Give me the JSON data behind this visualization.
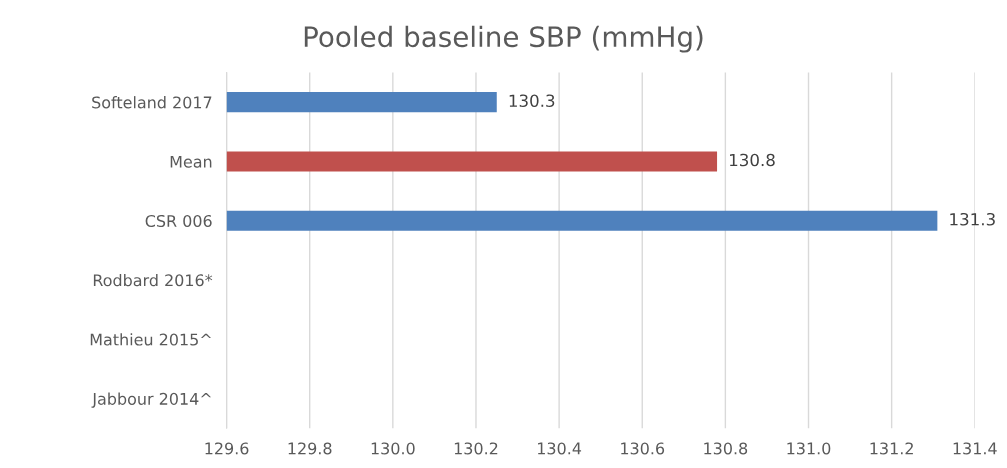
{
  "chart_data": {
    "type": "bar",
    "orientation": "horizontal",
    "title": "Pooled baseline SBP (mmHg)",
    "categories": [
      "Softeland 2017",
      "Mean",
      "CSR 006",
      "Rodbard 2016*",
      "Mathieu 2015^",
      "Jabbour 2014^"
    ],
    "values": [
      130.25,
      130.78,
      131.31,
      null,
      null,
      null
    ],
    "colors": [
      "#4f81bd",
      "#c0504d",
      "#4f81bd",
      "#4f81bd",
      "#4f81bd",
      "#4f81bd"
    ],
    "value_labels": [
      "130.3",
      "130.8",
      "131.3",
      null,
      null,
      null
    ],
    "xlim": [
      129.6,
      131.4
    ],
    "xticks": [
      {
        "value": 129.6,
        "label": "129.6"
      },
      {
        "value": 129.8,
        "label": "129.8"
      },
      {
        "value": 130.0,
        "label": "130.0"
      },
      {
        "value": 130.2,
        "label": "130.2"
      },
      {
        "value": 130.4,
        "label": "130.4"
      },
      {
        "value": 130.6,
        "label": "130.6"
      },
      {
        "value": 130.8,
        "label": "130.8"
      },
      {
        "value": 131.0,
        "label": "131.0"
      },
      {
        "value": 131.2,
        "label": "131.2"
      },
      {
        "value": 131.4,
        "label": "131.4"
      }
    ],
    "grid": "x"
  }
}
